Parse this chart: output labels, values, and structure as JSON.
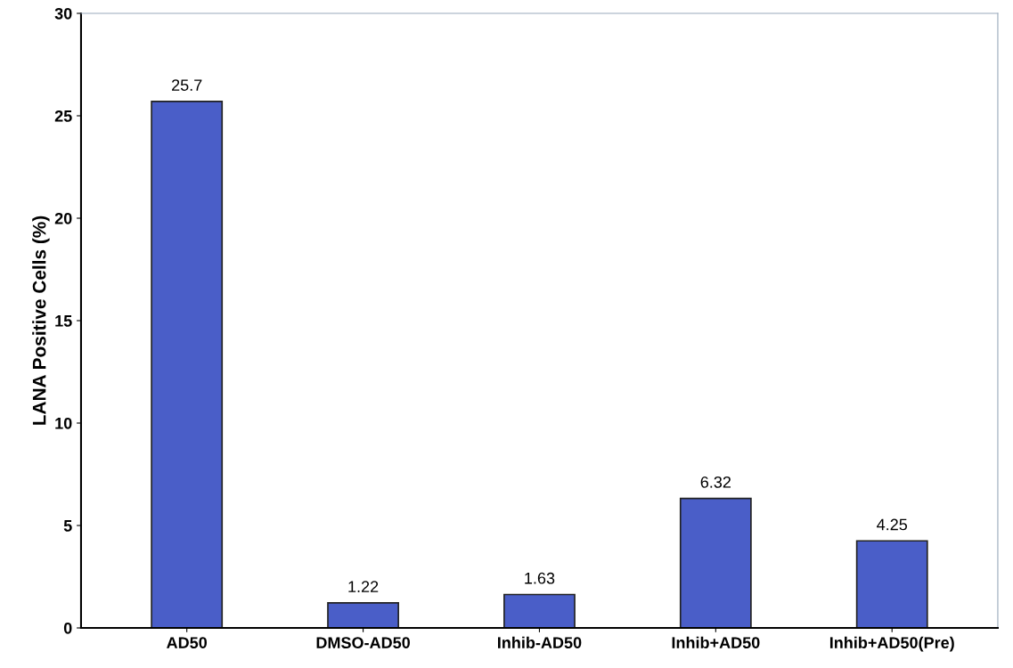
{
  "chart_data": {
    "type": "bar",
    "ylabel": "LANA Positive Cells (%)",
    "categories": [
      "AD50",
      "DMSO-AD50",
      "Inhib-AD50",
      "Inhib+AD50",
      "Inhib+AD50(Pre)"
    ],
    "values": [
      25.7,
      1.22,
      1.63,
      6.32,
      4.25
    ],
    "color": "#4a5ec8",
    "ylim": [
      0,
      30
    ],
    "yticks": [
      0,
      5,
      10,
      15,
      20,
      25,
      30
    ],
    "data_labels": true,
    "grid": false
  }
}
